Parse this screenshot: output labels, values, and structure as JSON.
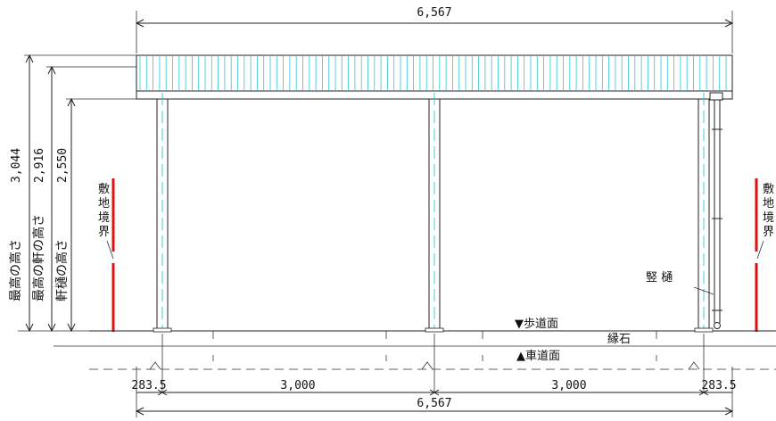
{
  "dimensions": {
    "overall_top": "6,567",
    "overall_bottom": "6,567",
    "left_offset": "283.5",
    "right_offset": "283.5",
    "span_left": "3,000",
    "span_right": "3,000"
  },
  "heights": {
    "max_height": {
      "label": "最高の高さ",
      "value": "3,044"
    },
    "max_eave_height": {
      "label": "最高の軒の高さ",
      "value": "2,916"
    },
    "eave_gutter_height": {
      "label": "軒樋の高さ",
      "value": "2,550"
    }
  },
  "labels": {
    "boundary_left": "敷地境界",
    "boundary_right": "敷地境界",
    "downspout": "竪 樋",
    "sidewalk": "▼歩道面",
    "curb": "縁石",
    "roadway": "▲車道面"
  },
  "colors": {
    "roof_hatch": "#2ec4d6",
    "boundary": "#e01010",
    "line": "#222222"
  }
}
